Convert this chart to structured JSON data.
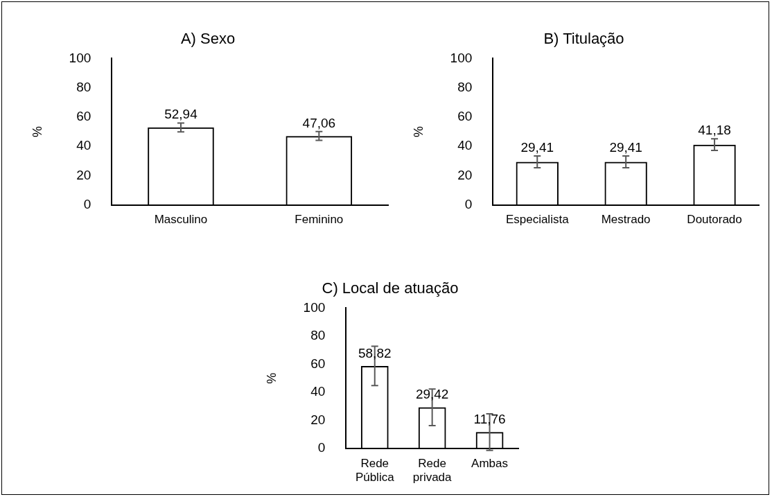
{
  "chart_data": [
    {
      "type": "bar",
      "title": "A) Sexo",
      "ylabel": "%",
      "categories": [
        "Masculino",
        "Feminino"
      ],
      "values": [
        52.94,
        47.06
      ],
      "errors": [
        3,
        3
      ],
      "color": "#000000",
      "ylim": [
        0,
        100
      ],
      "yticks": [
        0,
        20,
        40,
        60,
        80,
        100
      ],
      "value_labels": [
        "52,94",
        "47,06"
      ]
    },
    {
      "type": "bar",
      "title": "B) Titulação",
      "ylabel": "%",
      "categories": [
        "Especialista",
        "Mestrado",
        "Doutorado"
      ],
      "values": [
        29.41,
        29.41,
        41.18
      ],
      "errors": [
        4,
        4,
        4
      ],
      "color": "#000000",
      "ylim": [
        0,
        100
      ],
      "yticks": [
        0,
        20,
        40,
        60,
        80,
        100
      ],
      "value_labels": [
        "29,41",
        "29,41",
        "41,18"
      ]
    },
    {
      "type": "bar",
      "title": "C) Local de atuação",
      "ylabel": "%",
      "categories": [
        "Rede Pública",
        "Rede privada",
        "Ambas"
      ],
      "values": [
        58.82,
        29.42,
        11.76
      ],
      "errors": [
        14,
        13,
        13
      ],
      "color": "#000000",
      "ylim": [
        0,
        100
      ],
      "yticks": [
        0,
        20,
        40,
        60,
        80,
        100
      ],
      "value_labels": [
        "58,82",
        "29,42",
        "11,76"
      ]
    }
  ]
}
